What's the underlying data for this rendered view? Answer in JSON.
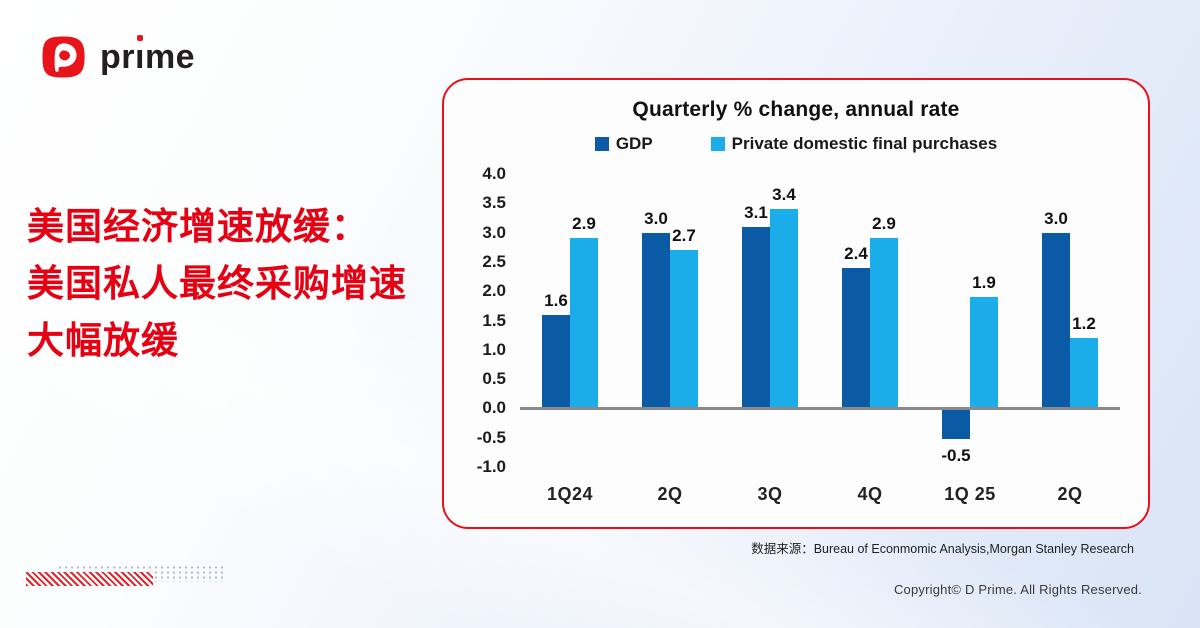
{
  "logo": {
    "text": "prime"
  },
  "headline": {
    "lines": [
      "美国经济增速放缓：",
      "美国私人最终采购增速",
      "大幅放缓"
    ]
  },
  "chart_data": {
    "type": "bar",
    "title": "Quarterly % change, annual rate",
    "categories": [
      "1Q24",
      "2Q",
      "3Q",
      "4Q",
      "1Q 25",
      "2Q"
    ],
    "series": [
      {
        "name": "GDP",
        "color": "#0b5aa5",
        "values": [
          1.6,
          3.0,
          3.1,
          2.4,
          -0.5,
          3.0
        ]
      },
      {
        "name": "Private domestic final purchases",
        "color": "#1aade9",
        "values": [
          2.9,
          2.7,
          3.4,
          2.9,
          1.9,
          1.2
        ]
      }
    ],
    "ylim": [
      -1.0,
      4.0
    ],
    "yticks": [
      4.0,
      3.5,
      3.0,
      2.5,
      2.0,
      1.5,
      1.0,
      0.5,
      0.0,
      -0.5,
      -1.0
    ],
    "grid": false,
    "legend_position": "top",
    "xlabel": "",
    "ylabel": ""
  },
  "source": {
    "label": "数据来源：",
    "text": "Bureau of Econmomic Analysis,Morgan Stanley Research"
  },
  "footer": {
    "copyright": "Copyright© D Prime. All Rights Reserved."
  },
  "colors": {
    "accent_red": "#e60012",
    "card_border": "#e8101c",
    "gdp_blue": "#0b5aa5",
    "light_blue": "#1aade9",
    "zero_line": "#8a8a8a"
  }
}
